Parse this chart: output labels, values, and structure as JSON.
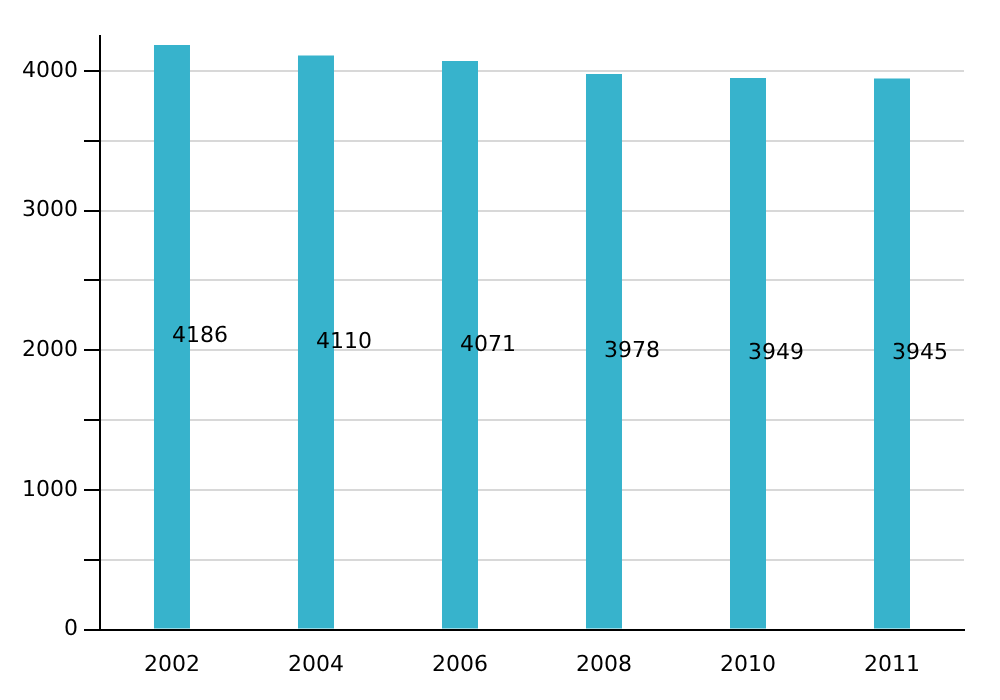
{
  "chart_data": {
    "type": "bar",
    "categories": [
      "2002",
      "2004",
      "2006",
      "2008",
      "2010",
      "2011"
    ],
    "values": [
      4186,
      4110,
      4071,
      3978,
      3949,
      3945
    ],
    "color": "#37b3cc",
    "ylim": [
      0,
      4250
    ],
    "yticks": [
      0,
      {
        "value": 500,
        "label": null
      },
      1000,
      {
        "value": 1500,
        "label": null
      },
      2000,
      {
        "value": 2500,
        "label": null
      },
      3000,
      {
        "value": 3500,
        "label": null
      },
      4000
    ],
    "grid": "y",
    "data_labels": true,
    "legend": false
  }
}
